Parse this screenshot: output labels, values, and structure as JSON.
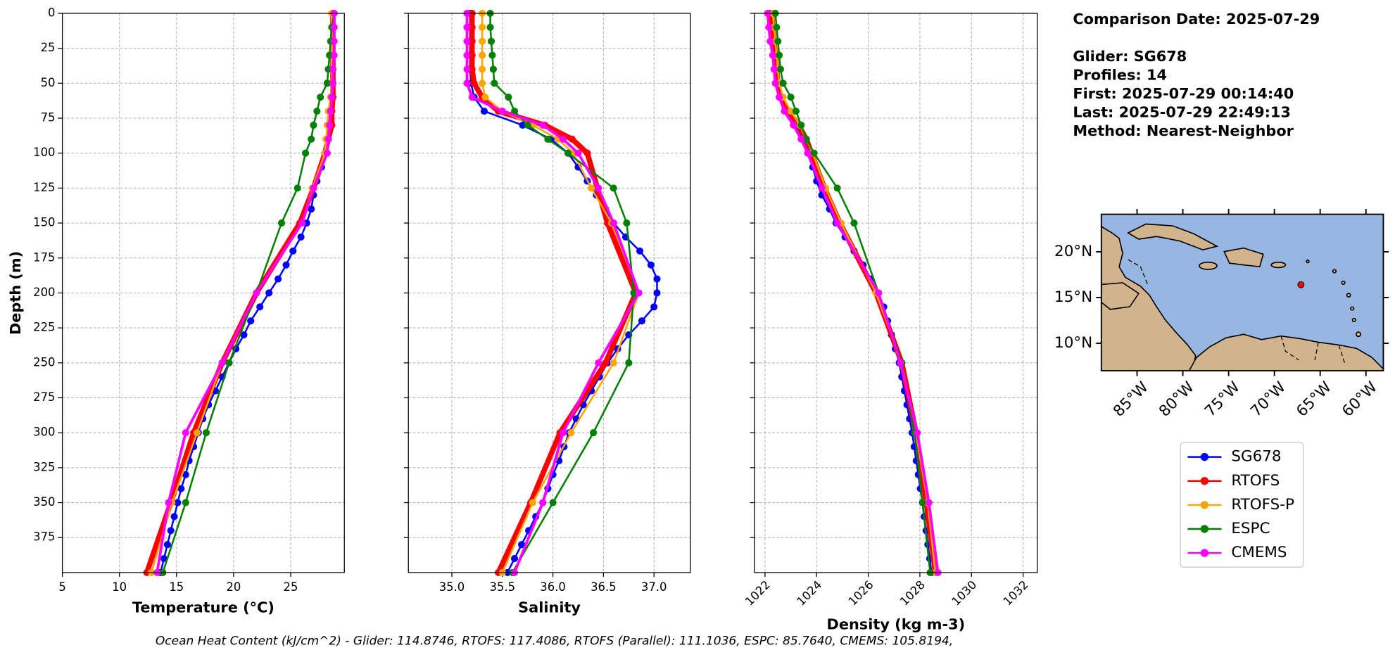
{
  "chart_data": [
    {
      "type": "line",
      "xlabel": "Temperature (°C)",
      "ylabel": "Depth (m)",
      "xlim": [
        5,
        29.7
      ],
      "xticks": [
        5,
        10,
        15,
        20,
        25
      ],
      "ylim": [
        400,
        0
      ],
      "yticks": [
        0,
        25,
        50,
        75,
        100,
        125,
        150,
        175,
        200,
        225,
        250,
        275,
        300,
        325,
        350,
        375
      ],
      "show_ytick_labels": true,
      "xtick_rotation": 0,
      "grid": true,
      "series": [
        {
          "name": "SG678",
          "color": "#0000ff",
          "linewidth": 2,
          "depth": [
            0,
            10,
            20,
            30,
            40,
            50,
            60,
            70,
            80,
            90,
            100,
            110,
            120,
            130,
            140,
            150,
            160,
            170,
            180,
            190,
            200,
            210,
            220,
            230,
            240,
            250,
            260,
            270,
            280,
            290,
            300,
            310,
            320,
            330,
            340,
            350,
            360,
            370,
            380,
            390,
            400
          ],
          "values": [
            28.8,
            28.8,
            28.7,
            28.7,
            28.6,
            28.6,
            28.5,
            28.4,
            28.3,
            28.2,
            28.0,
            27.7,
            27.3,
            27.0,
            26.8,
            26.4,
            25.9,
            25.2,
            24.6,
            23.9,
            23.1,
            22.3,
            21.5,
            20.9,
            20.2,
            19.6,
            19.0,
            18.4,
            17.8,
            17.3,
            16.9,
            16.5,
            16.1,
            15.8,
            15.4,
            15.1,
            14.8,
            14.5,
            14.2,
            13.9,
            13.6
          ]
        },
        {
          "name": "RTOFS",
          "color": "#ff0000",
          "linewidth": 6,
          "depth": [
            0,
            10,
            20,
            30,
            40,
            50,
            60,
            70,
            80,
            90,
            100,
            125,
            150,
            200,
            250,
            300,
            350,
            400
          ],
          "values": [
            28.7,
            28.7,
            28.7,
            28.7,
            28.7,
            28.7,
            28.7,
            28.6,
            28.6,
            28.3,
            28.0,
            27.0,
            25.8,
            22.0,
            19.0,
            16.5,
            14.5,
            12.4
          ]
        },
        {
          "name": "RTOFS-P",
          "color": "#ffa500",
          "linewidth": 2,
          "depth": [
            0,
            10,
            20,
            30,
            40,
            50,
            60,
            70,
            80,
            90,
            100,
            125,
            150,
            200,
            250,
            300,
            350,
            400
          ],
          "values": [
            28.6,
            28.6,
            28.6,
            28.6,
            28.6,
            28.6,
            28.5,
            28.3,
            28.2,
            28.1,
            28.0,
            26.9,
            26.0,
            22.0,
            19.0,
            16.8,
            14.6,
            12.8
          ]
        },
        {
          "name": "ESPC",
          "color": "#008000",
          "linewidth": 2,
          "depth": [
            0,
            10,
            20,
            30,
            40,
            50,
            60,
            70,
            80,
            90,
            100,
            125,
            150,
            200,
            250,
            300,
            350,
            400
          ],
          "values": [
            28.8,
            28.6,
            28.5,
            28.4,
            28.3,
            28.2,
            27.6,
            27.3,
            27.0,
            26.8,
            26.3,
            25.6,
            24.2,
            22.0,
            19.6,
            17.6,
            15.8,
            13.8
          ]
        },
        {
          "name": "CMEMS",
          "color": "#ff00ff",
          "linewidth": 3,
          "depth": [
            0,
            10,
            20,
            30,
            40,
            50,
            60,
            70,
            80,
            90,
            100,
            125,
            150,
            200,
            250,
            300,
            350,
            400
          ],
          "values": [
            28.8,
            28.8,
            28.8,
            28.8,
            28.7,
            28.7,
            28.6,
            28.5,
            28.4,
            28.3,
            28.2,
            27.0,
            26.0,
            22.0,
            19.0,
            15.8,
            14.3,
            13.3
          ]
        }
      ]
    },
    {
      "type": "line",
      "xlabel": "Salinity",
      "xlim": [
        34.57,
        37.36
      ],
      "xticks": [
        {
          "value": 35,
          "label": "35.0"
        },
        35.5,
        {
          "value": 36,
          "label": "36.0"
        },
        36.5,
        {
          "value": 37,
          "label": "37.0"
        }
      ],
      "ylim": [
        400,
        0
      ],
      "yticks": [
        0,
        25,
        50,
        75,
        100,
        125,
        150,
        175,
        200,
        225,
        250,
        275,
        300,
        325,
        350,
        375
      ],
      "show_ytick_labels": false,
      "xtick_rotation": 0,
      "grid": true,
      "series": [
        {
          "name": "SG678",
          "color": "#0000ff",
          "linewidth": 2,
          "depth": [
            0,
            10,
            20,
            30,
            40,
            50,
            60,
            70,
            80,
            90,
            100,
            110,
            120,
            130,
            140,
            150,
            160,
            170,
            180,
            190,
            200,
            210,
            220,
            230,
            240,
            250,
            260,
            270,
            280,
            290,
            300,
            310,
            320,
            330,
            340,
            350,
            360,
            370,
            380,
            390,
            400
          ],
          "values": [
            35.18,
            35.18,
            35.18,
            35.18,
            35.18,
            35.19,
            35.22,
            35.32,
            35.7,
            35.98,
            36.15,
            36.25,
            36.34,
            36.43,
            36.52,
            36.6,
            36.72,
            36.86,
            36.97,
            37.03,
            37.03,
            37.0,
            36.88,
            36.75,
            36.64,
            36.54,
            36.46,
            36.38,
            36.3,
            36.23,
            36.16,
            36.11,
            36.06,
            36.0,
            35.95,
            35.9,
            35.83,
            35.76,
            35.69,
            35.62,
            35.55
          ]
        },
        {
          "name": "RTOFS",
          "color": "#ff0000",
          "linewidth": 6,
          "depth": [
            0,
            10,
            20,
            30,
            40,
            50,
            60,
            70,
            80,
            90,
            100,
            125,
            150,
            200,
            250,
            300,
            350,
            400
          ],
          "values": [
            35.2,
            35.2,
            35.2,
            35.2,
            35.2,
            35.22,
            35.3,
            35.46,
            35.92,
            36.19,
            36.34,
            36.44,
            36.54,
            36.82,
            36.52,
            36.07,
            35.78,
            35.46
          ]
        },
        {
          "name": "RTOFS-P",
          "color": "#ffa500",
          "linewidth": 2,
          "depth": [
            0,
            10,
            20,
            30,
            40,
            50,
            60,
            70,
            80,
            90,
            100,
            125,
            150,
            200,
            250,
            300,
            350,
            400
          ],
          "values": [
            35.3,
            35.3,
            35.3,
            35.3,
            35.3,
            35.3,
            35.33,
            35.5,
            35.8,
            36.05,
            36.2,
            36.38,
            36.58,
            36.85,
            36.6,
            36.18,
            35.8,
            35.5
          ]
        },
        {
          "name": "ESPC",
          "color": "#008000",
          "linewidth": 2,
          "depth": [
            0,
            10,
            20,
            30,
            40,
            50,
            60,
            70,
            80,
            90,
            100,
            125,
            150,
            200,
            250,
            300,
            350,
            400
          ],
          "values": [
            35.38,
            35.38,
            35.39,
            35.4,
            35.41,
            35.42,
            35.56,
            35.62,
            35.75,
            35.95,
            36.15,
            36.6,
            36.73,
            36.8,
            36.75,
            36.4,
            36.0,
            35.6
          ]
        },
        {
          "name": "CMEMS",
          "color": "#ff00ff",
          "linewidth": 3,
          "depth": [
            0,
            10,
            20,
            30,
            40,
            50,
            60,
            70,
            80,
            90,
            100,
            125,
            150,
            200,
            250,
            300,
            350,
            400
          ],
          "values": [
            35.15,
            35.15,
            35.15,
            35.15,
            35.15,
            35.15,
            35.2,
            35.5,
            35.9,
            36.1,
            36.25,
            36.45,
            36.6,
            36.85,
            36.45,
            36.1,
            35.9,
            35.62
          ]
        }
      ]
    },
    {
      "type": "line",
      "xlabel": "Density (kg m-3)",
      "xlim": [
        1021.59,
        1032.55
      ],
      "xticks": [
        1022,
        1024,
        1026,
        1028,
        1030,
        1032
      ],
      "ylim": [
        400,
        0
      ],
      "yticks": [
        0,
        25,
        50,
        75,
        100,
        125,
        150,
        175,
        200,
        225,
        250,
        275,
        300,
        325,
        350,
        375
      ],
      "show_ytick_labels": false,
      "xtick_rotation": 45,
      "grid": true,
      "series": [
        {
          "name": "SG678",
          "color": "#0000ff",
          "linewidth": 2,
          "depth": [
            0,
            10,
            20,
            30,
            40,
            50,
            60,
            70,
            80,
            90,
            100,
            110,
            120,
            130,
            140,
            150,
            160,
            170,
            180,
            190,
            200,
            210,
            220,
            230,
            240,
            250,
            260,
            270,
            280,
            290,
            300,
            310,
            320,
            330,
            340,
            350,
            360,
            370,
            380,
            390,
            400
          ],
          "values": [
            1022.2,
            1022.25,
            1022.3,
            1022.35,
            1022.4,
            1022.45,
            1022.6,
            1022.8,
            1023.2,
            1023.5,
            1023.7,
            1023.85,
            1024.0,
            1024.2,
            1024.5,
            1024.75,
            1025.1,
            1025.45,
            1025.8,
            1026.1,
            1026.4,
            1026.6,
            1026.75,
            1026.9,
            1027.05,
            1027.2,
            1027.3,
            1027.4,
            1027.5,
            1027.6,
            1027.7,
            1027.78,
            1027.86,
            1027.94,
            1028.02,
            1028.1,
            1028.17,
            1028.24,
            1028.31,
            1028.38,
            1028.45
          ]
        },
        {
          "name": "RTOFS",
          "color": "#ff0000",
          "linewidth": 6,
          "depth": [
            0,
            10,
            20,
            30,
            40,
            50,
            60,
            70,
            80,
            90,
            100,
            125,
            150,
            200,
            250,
            300,
            350,
            400
          ],
          "values": [
            1022.25,
            1022.3,
            1022.35,
            1022.4,
            1022.45,
            1022.5,
            1022.6,
            1022.9,
            1023.3,
            1023.6,
            1023.8,
            1024.3,
            1024.9,
            1026.3,
            1027.3,
            1027.85,
            1028.25,
            1028.6
          ]
        },
        {
          "name": "RTOFS-P",
          "color": "#ffa500",
          "linewidth": 2,
          "depth": [
            0,
            10,
            20,
            30,
            40,
            50,
            60,
            70,
            80,
            90,
            100,
            125,
            150,
            200,
            250,
            300,
            350,
            400
          ],
          "values": [
            1022.3,
            1022.35,
            1022.4,
            1022.45,
            1022.5,
            1022.55,
            1022.7,
            1023.0,
            1023.35,
            1023.6,
            1023.85,
            1024.35,
            1024.95,
            1026.3,
            1027.3,
            1027.85,
            1028.3,
            1028.6
          ]
        },
        {
          "name": "ESPC",
          "color": "#008000",
          "linewidth": 2,
          "depth": [
            0,
            10,
            20,
            30,
            40,
            50,
            60,
            70,
            80,
            90,
            100,
            125,
            150,
            200,
            250,
            300,
            350,
            400
          ],
          "values": [
            1022.4,
            1022.45,
            1022.5,
            1022.55,
            1022.6,
            1022.7,
            1023.0,
            1023.2,
            1023.4,
            1023.6,
            1023.9,
            1024.8,
            1025.45,
            1026.4,
            1027.3,
            1027.8,
            1028.1,
            1028.4
          ]
        },
        {
          "name": "CMEMS",
          "color": "#ff00ff",
          "linewidth": 3,
          "depth": [
            0,
            10,
            20,
            30,
            40,
            50,
            60,
            70,
            80,
            90,
            100,
            125,
            150,
            200,
            250,
            300,
            350,
            400
          ],
          "values": [
            1022.1,
            1022.15,
            1022.2,
            1022.3,
            1022.35,
            1022.4,
            1022.55,
            1022.75,
            1023.1,
            1023.4,
            1023.65,
            1024.2,
            1024.8,
            1026.4,
            1027.25,
            1027.9,
            1028.35,
            1028.7
          ]
        }
      ]
    },
    {
      "type": "map",
      "xlim": [
        -88.9,
        -58.1
      ],
      "ylim": [
        7.0,
        24.1
      ],
      "xticks": [
        {
          "value": -85,
          "label": "85°W"
        },
        {
          "value": -80,
          "label": "80°W"
        },
        {
          "value": -75,
          "label": "75°W"
        },
        {
          "value": -70,
          "label": "70°W"
        },
        {
          "value": -65,
          "label": "65°W"
        },
        {
          "value": -60,
          "label": "60°W"
        }
      ],
      "yticks": [
        {
          "value": 20,
          "label": "20°N"
        },
        {
          "value": 15,
          "label": "15°N"
        },
        {
          "value": 10,
          "label": "10°N"
        }
      ],
      "xtick_rotation": 45,
      "ocean_color": "#97b6e1",
      "land_color": "#d2b48c",
      "point": {
        "lon": -67.1,
        "lat": 16.4,
        "color": "#ff0000"
      }
    }
  ],
  "info": [
    "Comparison Date: 2025-07-29",
    "Glider: SG678",
    "Profiles: 14",
    "First: 2025-07-29 00:14:40",
    "Last: 2025-07-29 22:49:13",
    "Method: Nearest-Neighbor"
  ],
  "caption": "Ocean Heat Content (kJ/cm^2) - Glider: 114.8746,  RTOFS: 117.4086,  RTOFS (Parallel): 111.1036,  ESPC: 85.7640,  CMEMS: 105.8194,"
}
